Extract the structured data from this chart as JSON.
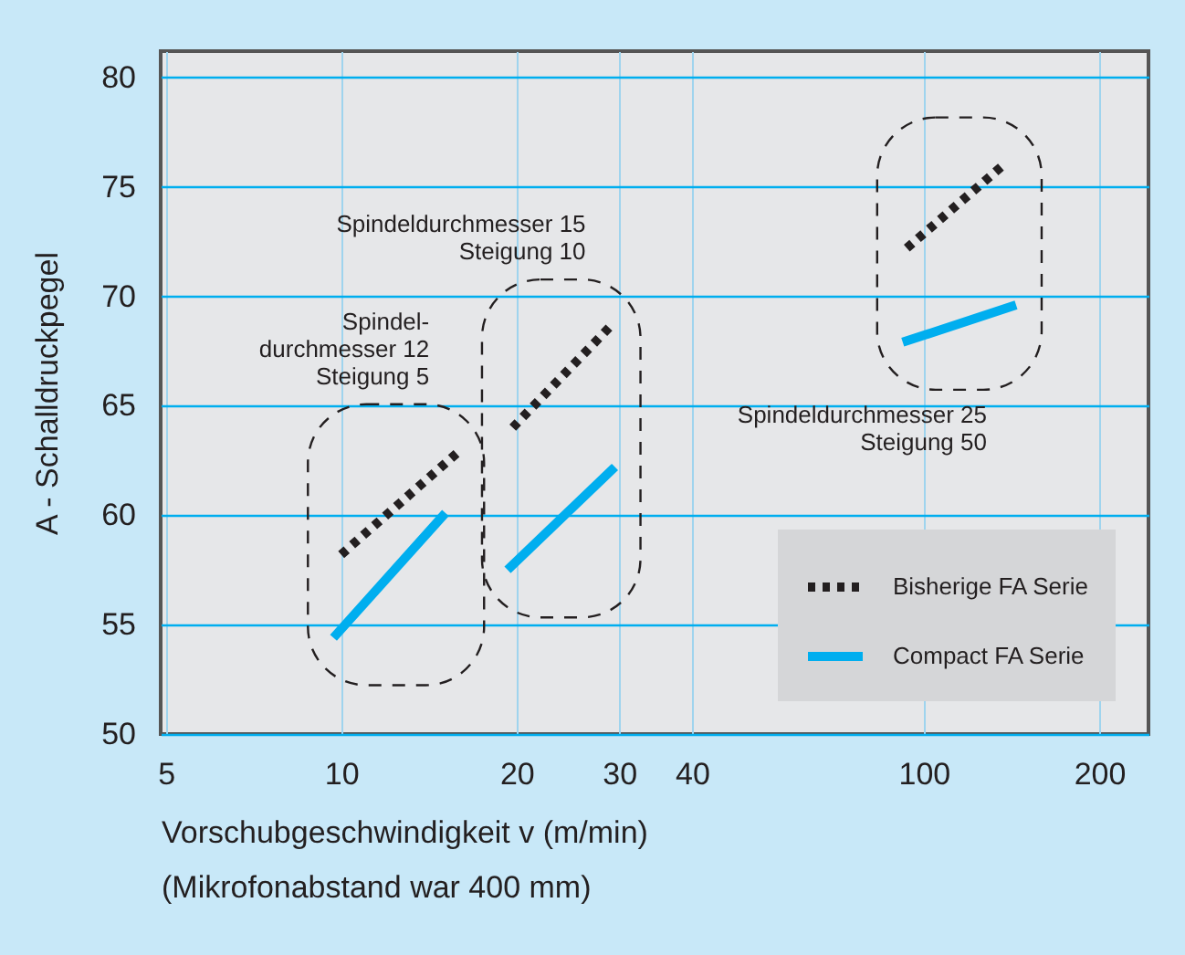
{
  "chart_data": {
    "type": "line",
    "xlabel": "Vorschubgeschwindigkeit v (m/min)",
    "ylabel": "A - Schalldruckpegel",
    "log": "x",
    "xlim": [
      4.9,
      243
    ],
    "xticks": [
      5,
      10,
      20,
      30,
      40,
      100,
      200
    ],
    "ylim": [
      50,
      81.2
    ],
    "yticks": [
      50,
      55,
      60,
      65,
      70,
      75,
      80
    ],
    "grid": true,
    "legend": "bottom right",
    "series": [
      {
        "name": "Bisherige FA Serie",
        "color": "#231f20",
        "line_style": "dotted",
        "x": [
          10,
          15.9,
          null,
          19.7,
          28.9,
          null,
          93.5,
          137
        ],
        "values": [
          58.2,
          62.9,
          null,
          64.0,
          68.6,
          null,
          72.2,
          76.0
        ]
      },
      {
        "name": "Compact FA Serie",
        "color": "#00aeef",
        "line_style": "solid",
        "x": [
          9.7,
          15.1,
          null,
          19.3,
          29.5,
          null,
          92,
          144
        ],
        "values": [
          54.4,
          60.1,
          null,
          57.5,
          62.2,
          null,
          67.9,
          69.6
        ]
      }
    ],
    "annotations": [
      "Spindel-\ndurchmesser 12\nSteigung   5",
      "Spindeldurchmesser 15\nSteigung 10",
      "Spindeldurchmesser 25\nSteigung 50",
      "(Mikrofonabstand war 400 mm)"
    ]
  }
}
